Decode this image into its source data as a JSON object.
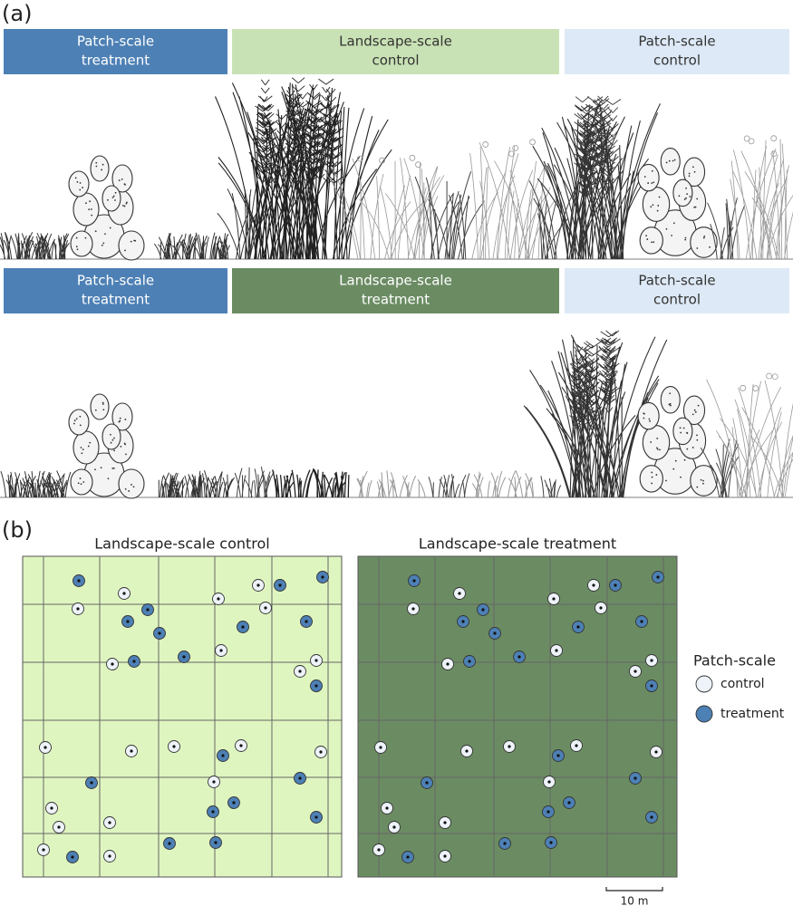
{
  "panel_a": {
    "label": "(a)",
    "rows": [
      {
        "headers": [
          [
            "Patch-scale",
            "treatment"
          ],
          [
            "Landscape-scale",
            "control"
          ],
          [
            "Patch-scale",
            "control"
          ]
        ]
      },
      {
        "headers": [
          [
            "Patch-scale",
            "treatment"
          ],
          [
            "Landscape-scale",
            "treatment"
          ],
          [
            "Patch-scale",
            "control"
          ]
        ]
      }
    ]
  },
  "panel_b": {
    "label": "(b)",
    "plots": [
      "Landscape-scale control",
      "Landscape-scale treatment"
    ],
    "legend": {
      "title": "Patch-scale",
      "items": [
        "control",
        "treatment"
      ]
    },
    "scale_bar": "10 m"
  }
}
